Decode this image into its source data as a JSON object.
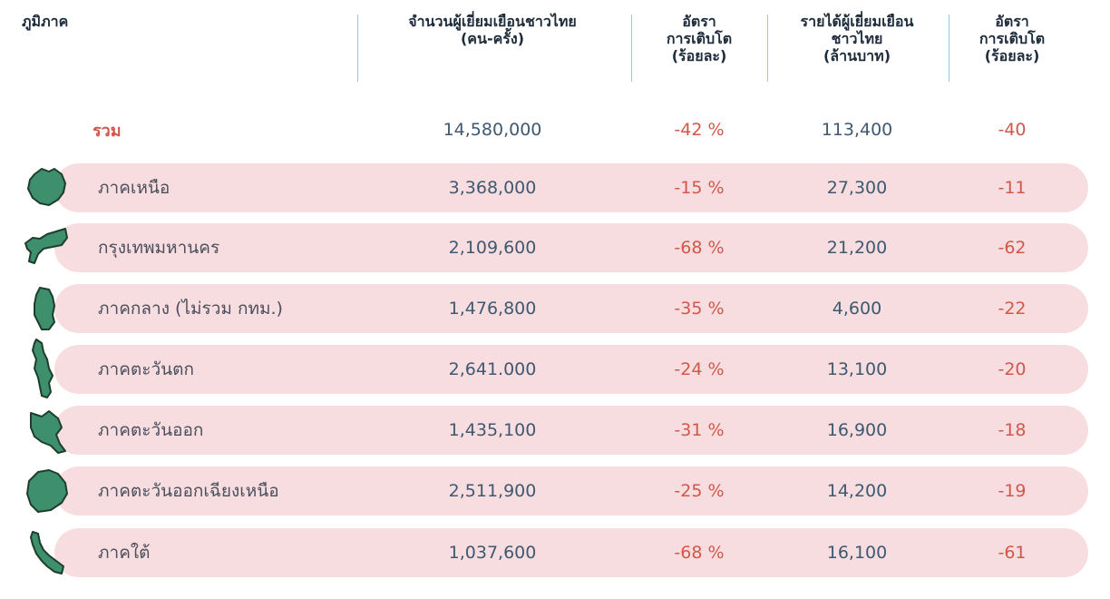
{
  "header": {
    "region": "ภูมิภาค",
    "visitors_line1": "จำนวนผู้เยี่ยมเยือนชาวไทย",
    "visitors_line2": "(คน-ครั้ง)",
    "growth1_line1": "อัตรา",
    "growth1_line2": "การเติบโต",
    "growth1_line3": "(ร้อยละ)",
    "revenue_line1": "รายได้ผู้เยี่ยมเยือน",
    "revenue_line2": "ชาวไทย",
    "revenue_line3": "(ล้านบาท)",
    "growth2_line1": "อัตรา",
    "growth2_line2": "การเติบโต",
    "growth2_line3": "(ร้อยละ)"
  },
  "total": {
    "name": "รวม",
    "visitors": "14,580,000",
    "visitor_growth": "-42 %",
    "revenue": "113,400",
    "revenue_growth": "-40"
  },
  "rows": [
    {
      "name": "ภาคเหนือ",
      "visitors": "3,368,000",
      "visitor_growth": "-15 %",
      "revenue": "27,300",
      "revenue_growth": "-11",
      "icon": "north-region-map-icon"
    },
    {
      "name": "กรุงเทพมหานคร",
      "visitors": "2,109,600",
      "visitor_growth": "-68 %",
      "revenue": "21,200",
      "revenue_growth": "-62",
      "icon": "bangkok-map-icon"
    },
    {
      "name": "ภาคกลาง (ไม่รวม กทม.)",
      "visitors": "1,476,800",
      "visitor_growth": "-35 %",
      "revenue": "4,600",
      "revenue_growth": "-22",
      "icon": "central-region-map-icon"
    },
    {
      "name": "ภาคตะวันตก",
      "visitors": "2,641.000",
      "visitor_growth": "-24 %",
      "revenue": "13,100",
      "revenue_growth": "-20",
      "icon": "west-region-map-icon"
    },
    {
      "name": "ภาคตะวันออก",
      "visitors": "1,435,100",
      "visitor_growth": "-31 %",
      "revenue": "16,900",
      "revenue_growth": "-18",
      "icon": "east-region-map-icon"
    },
    {
      "name": "ภาคตะวันออกเฉียงเหนือ",
      "visitors": "2,511,900",
      "visitor_growth": "-25 %",
      "revenue": "14,200",
      "revenue_growth": "-19",
      "icon": "northeast-region-map-icon"
    },
    {
      "name": "ภาคใต้",
      "visitors": "1,037,600",
      "visitor_growth": "-68 %",
      "revenue": "16,100",
      "revenue_growth": "-61",
      "icon": "south-region-map-icon"
    }
  ],
  "colors": {
    "row_background": "#f7dde0",
    "negative_value": "#d0584a",
    "number_value": "#3e5970",
    "map_fill": "#3e8f6b",
    "header_divider": "#9ac8dc"
  }
}
